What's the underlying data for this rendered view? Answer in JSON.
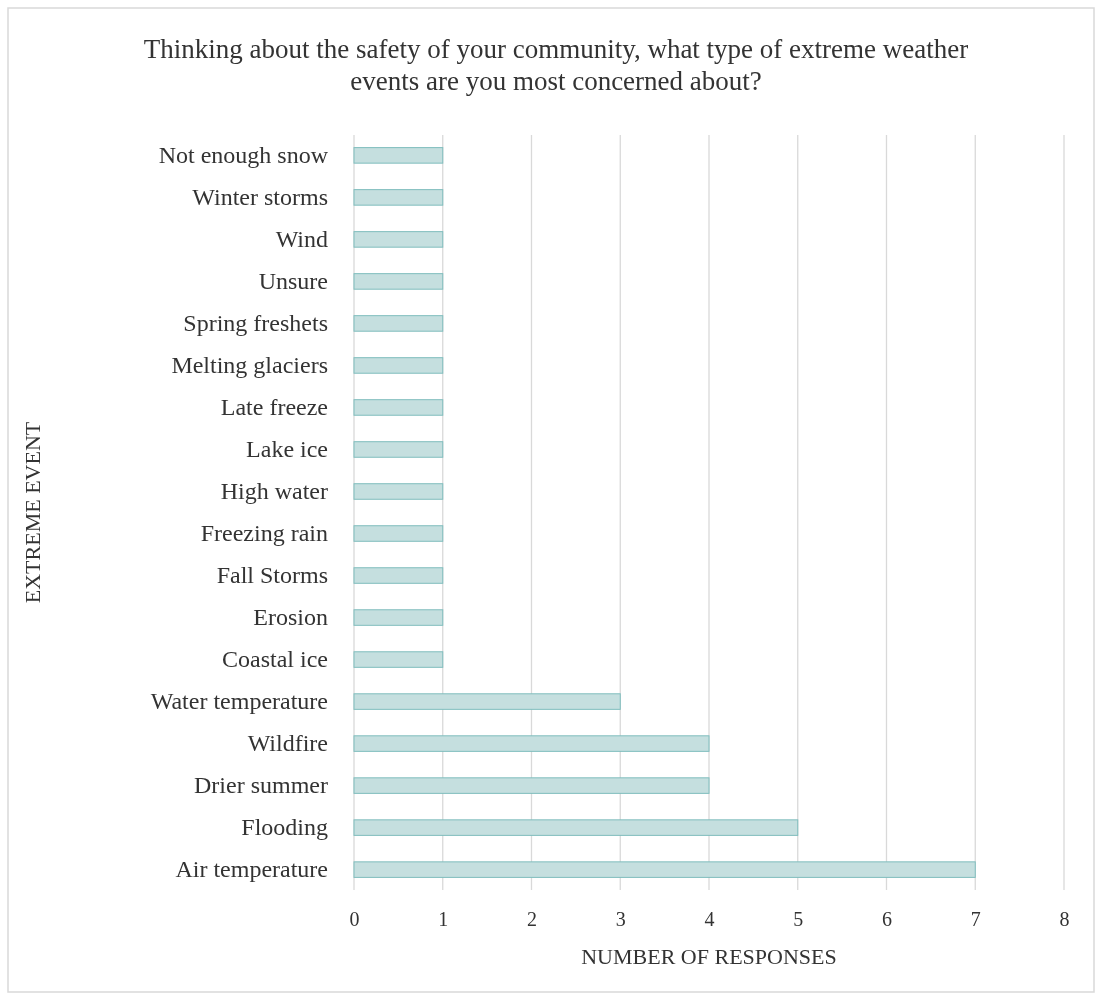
{
  "chart_data": {
    "type": "bar",
    "orientation": "horizontal",
    "title": "Thinking about the safety of your community, what type of extreme weather events are you most concerned about?",
    "xlabel": "NUMBER OF RESPONSES",
    "ylabel": "EXTREME EVENT",
    "categories": [
      "Not enough snow",
      "Winter storms",
      "Wind",
      "Unsure",
      "Spring freshets",
      "Melting glaciers",
      "Late freeze",
      "Lake ice",
      "High water",
      "Freezing rain",
      "Fall Storms",
      "Erosion",
      "Coastal ice",
      "Water temperature",
      "Wildfire",
      "Drier summer",
      "Flooding",
      "Air temperature"
    ],
    "values": [
      1,
      1,
      1,
      1,
      1,
      1,
      1,
      1,
      1,
      1,
      1,
      1,
      1,
      3,
      4,
      4,
      5,
      7
    ],
    "color": "#c5dfdf",
    "xlim": [
      0,
      8
    ],
    "xticks": [
      0,
      1,
      2,
      3,
      4,
      5,
      6,
      7,
      8
    ],
    "grid": "x"
  }
}
